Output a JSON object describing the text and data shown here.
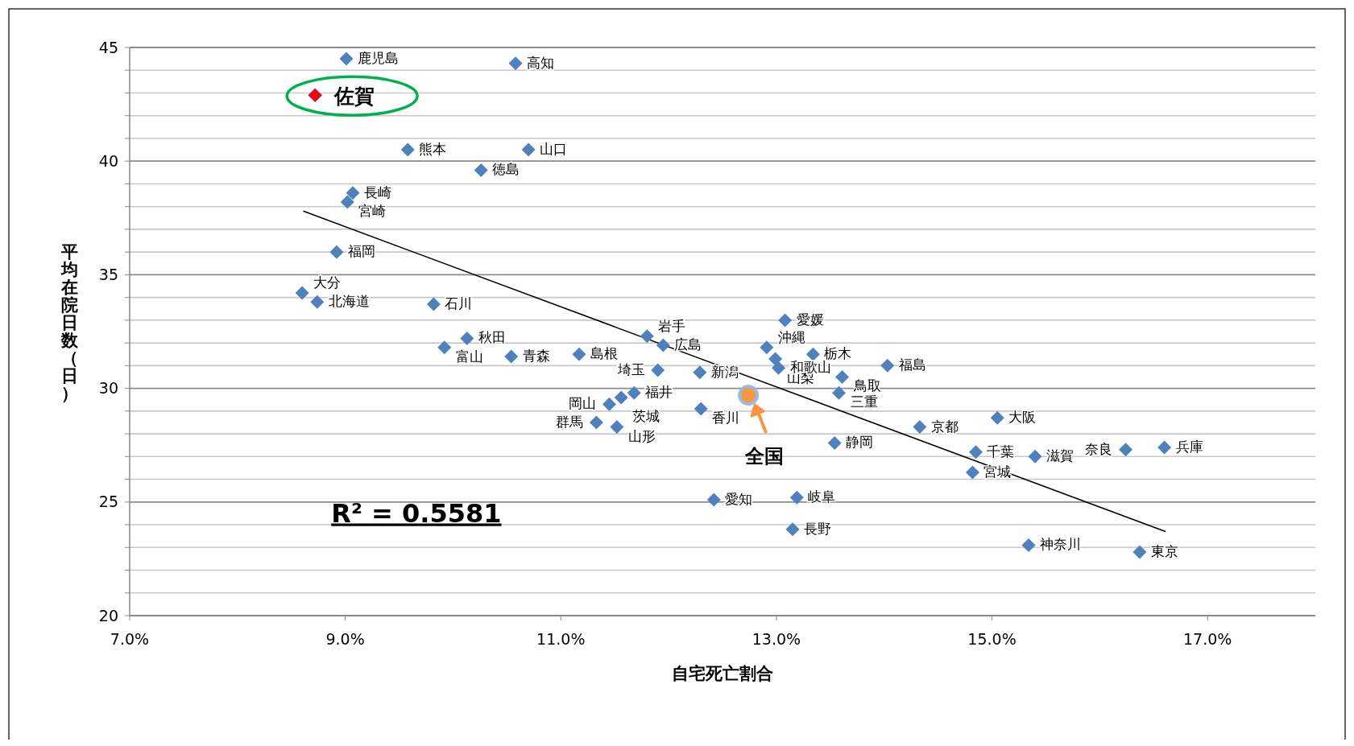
{
  "chart_data": {
    "type": "scatter",
    "xlabel": "自宅死亡割合",
    "ylabel": "平均在院日数（日）",
    "xlim": [
      7,
      18
    ],
    "xticks": [
      {
        "value": 7,
        "label": "7.0%"
      },
      {
        "value": 9,
        "label": "9.0%"
      },
      {
        "value": 11,
        "label": "11.0%"
      },
      {
        "value": 13,
        "label": "13.0%"
      },
      {
        "value": 15,
        "label": "15.0%"
      },
      {
        "value": 17,
        "label": "17.0%"
      }
    ],
    "ylim": [
      20,
      45
    ],
    "yticks": [
      20,
      {
        "value": 21,
        "label": null
      },
      {
        "value": 22,
        "label": null
      },
      {
        "value": 23,
        "label": null
      },
      {
        "value": 24,
        "label": null
      },
      25,
      {
        "value": 26,
        "label": null
      },
      {
        "value": 27,
        "label": null
      },
      {
        "value": 28,
        "label": null
      },
      {
        "value": 29,
        "label": null
      },
      30,
      {
        "value": 31,
        "label": null
      },
      {
        "value": 32,
        "label": null
      },
      {
        "value": 33,
        "label": null
      },
      {
        "value": 34,
        "label": null
      },
      35,
      {
        "value": 36,
        "label": null
      },
      {
        "value": 37,
        "label": null
      },
      {
        "value": 38,
        "label": null
      },
      {
        "value": 39,
        "label": null
      },
      40,
      {
        "value": 41,
        "label": null
      },
      {
        "value": 42,
        "label": null
      },
      {
        "value": 43,
        "label": null
      },
      {
        "value": 44,
        "label": null
      },
      45
    ],
    "grid": "y",
    "series": [
      {
        "type": "scatter",
        "marker": "diamond",
        "color": "#4f81bd",
        "x": [
          9.01,
          10.58,
          9.58,
          10.7,
          10.26,
          9.07,
          9.02,
          8.92,
          8.6,
          8.74,
          9.82,
          10.13,
          9.92,
          10.54,
          11.17,
          11.8,
          11.95,
          11.9,
          12.29,
          13.08,
          12.91,
          12.99,
          13.34,
          13.02,
          13.61,
          14.03,
          13.58,
          12.3,
          11.68,
          11.56,
          11.45,
          11.33,
          11.52,
          13.54,
          14.33,
          15.05,
          14.85,
          14.82,
          15.4,
          16.24,
          16.6,
          12.42,
          13.19,
          13.15,
          15.34,
          16.37
        ],
        "values": [
          44.5,
          44.3,
          40.5,
          40.5,
          39.6,
          38.6,
          38.2,
          36.0,
          34.2,
          33.8,
          33.7,
          32.2,
          31.8,
          31.4,
          31.5,
          32.3,
          31.9,
          30.8,
          30.7,
          33.0,
          31.8,
          31.3,
          31.5,
          30.9,
          30.5,
          31.0,
          29.8,
          29.1,
          29.8,
          29.6,
          29.3,
          28.5,
          28.3,
          27.6,
          28.3,
          28.7,
          27.2,
          26.3,
          27.0,
          27.3,
          27.4,
          25.1,
          25.2,
          23.8,
          23.1,
          22.8
        ]
      },
      {
        "type": "scatter",
        "marker": "diamond",
        "color": "#ff0000",
        "x": [
          8.72
        ],
        "values": [
          42.9
        ]
      },
      {
        "type": "scatter",
        "marker": "circle",
        "color": "#f79646",
        "x": [
          12.74
        ],
        "values": [
          29.7
        ]
      },
      {
        "type": "line",
        "color": "#000000",
        "x": [
          8.61,
          16.61
        ],
        "values": [
          37.8,
          23.7
        ]
      }
    ],
    "annotations": [
      {
        "text": "鹿児島",
        "x": 9.01,
        "y": 44.5
      },
      {
        "text": "高知",
        "x": 10.58,
        "y": 44.3
      },
      {
        "text": "熊本",
        "x": 9.58,
        "y": 40.5
      },
      {
        "text": "山口",
        "x": 10.7,
        "y": 40.5
      },
      {
        "text": "徳島",
        "x": 10.26,
        "y": 39.6
      },
      {
        "text": "長崎",
        "x": 9.07,
        "y": 38.6
      },
      {
        "text": "宮崎",
        "x": 9.02,
        "y": 38.2
      },
      {
        "text": "福岡",
        "x": 8.92,
        "y": 36.0
      },
      {
        "text": "大分",
        "x": 8.6,
        "y": 34.2
      },
      {
        "text": "北海道",
        "x": 8.74,
        "y": 33.8
      },
      {
        "text": "石川",
        "x": 9.82,
        "y": 33.7
      },
      {
        "text": "秋田",
        "x": 10.13,
        "y": 32.2
      },
      {
        "text": "富山",
        "x": 9.92,
        "y": 31.8
      },
      {
        "text": "青森",
        "x": 10.54,
        "y": 31.4
      },
      {
        "text": "島根",
        "x": 11.17,
        "y": 31.5
      },
      {
        "text": "岩手",
        "x": 11.8,
        "y": 32.3
      },
      {
        "text": "広島",
        "x": 11.95,
        "y": 31.9
      },
      {
        "text": "埼玉",
        "x": 11.9,
        "y": 30.8
      },
      {
        "text": "新潟",
        "x": 12.29,
        "y": 30.7
      },
      {
        "text": "愛媛",
        "x": 13.08,
        "y": 33.0
      },
      {
        "text": "沖縄",
        "x": 12.91,
        "y": 31.8
      },
      {
        "text": "山梨",
        "x": 12.99,
        "y": 31.3
      },
      {
        "text": "栃木",
        "x": 13.34,
        "y": 31.5
      },
      {
        "text": "和歌山",
        "x": 13.02,
        "y": 30.9
      },
      {
        "text": "鳥取",
        "x": 13.61,
        "y": 30.5
      },
      {
        "text": "福島",
        "x": 14.03,
        "y": 31.0
      },
      {
        "text": "三重",
        "x": 13.58,
        "y": 29.8
      },
      {
        "text": "香川",
        "x": 12.3,
        "y": 29.1
      },
      {
        "text": "福井",
        "x": 11.68,
        "y": 29.8
      },
      {
        "text": "茨城",
        "x": 11.56,
        "y": 29.6
      },
      {
        "text": "岡山",
        "x": 11.45,
        "y": 29.3
      },
      {
        "text": "群馬",
        "x": 11.33,
        "y": 28.5
      },
      {
        "text": "山形",
        "x": 11.52,
        "y": 28.3
      },
      {
        "text": "静岡",
        "x": 13.54,
        "y": 27.6
      },
      {
        "text": "京都",
        "x": 14.33,
        "y": 28.3
      },
      {
        "text": "大阪",
        "x": 15.05,
        "y": 28.7
      },
      {
        "text": "千葉",
        "x": 14.85,
        "y": 27.2
      },
      {
        "text": "宮城",
        "x": 14.82,
        "y": 26.3
      },
      {
        "text": "滋賀",
        "x": 15.4,
        "y": 27.0
      },
      {
        "text": "奈良",
        "x": 16.24,
        "y": 27.3
      },
      {
        "text": "兵庫",
        "x": 16.6,
        "y": 27.4
      },
      {
        "text": "愛知",
        "x": 12.42,
        "y": 25.1
      },
      {
        "text": "岐阜",
        "x": 13.19,
        "y": 25.2
      },
      {
        "text": "長野",
        "x": 13.15,
        "y": 23.8
      },
      {
        "text": "神奈川",
        "x": 15.34,
        "y": 23.1
      },
      {
        "text": "東京",
        "x": 16.37,
        "y": 22.8
      },
      {
        "text": "佐賀",
        "x": 8.72,
        "y": 42.9
      },
      {
        "text": "全国",
        "x": 12.74,
        "y": 29.7
      },
      "R² = 0.5581"
    ]
  }
}
